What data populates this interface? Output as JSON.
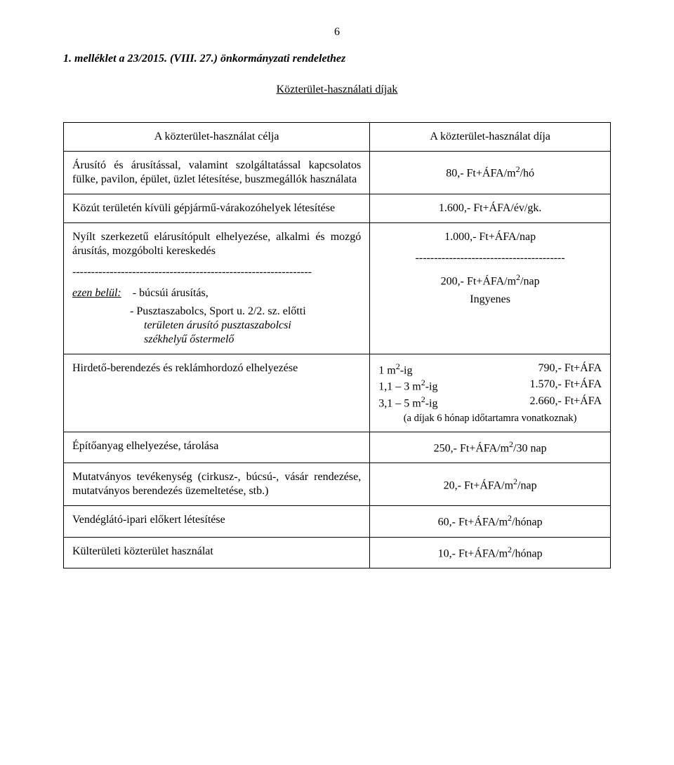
{
  "page_number": "6",
  "reference_line": "1. melléklet a 23/2015. (VIII. 27.) önkormányzati rendelethez",
  "title": "Közterület-használati díjak",
  "columns": {
    "left_header": "A közterület-használat célja",
    "right_header": "A közterület-használat díja"
  },
  "rows": {
    "selling": {
      "left": "Árusító és árusítással, valamint szolgáltatással kapcsolatos fülke, pavilon, épület, üzlet létesítése, buszmegállók használata",
      "right_html": "80,- Ft+ÁFA/m<sup>2</sup>/hó"
    },
    "parking": {
      "left": "Közút területén kívüli gépjármű-várakozóhelyek létesítése",
      "right": "1.600,- Ft+ÁFA/év/gk."
    },
    "booth": {
      "left": "Nyílt szerkezetű elárusítópult elhelyezése, alkalmi és mozgó árusítás, mozgóbolti kereskedés",
      "right": "1.000,- Ft+ÁFA/nap",
      "dash_left": "----------------------------------------------------------------",
      "dash_right": "----------------------------------------",
      "sub_label_prefix": "ezen belül:",
      "sub_label_1": "- búcsúi árusítás,",
      "sub_label_2a": "- Pusztaszabolcs, Sport u. 2/2. sz. előtti",
      "sub_label_2b": "területen árusító pusztaszabolcsi",
      "sub_label_2c": "székhelyű őstermelő",
      "sub_right_1_html": "200,- Ft+ÁFA/m<sup>2</sup>/nap",
      "sub_right_2": "Ingyenes"
    },
    "advert": {
      "left": "Hirdető-berendezés és reklámhordozó elhelyezése",
      "tariff": [
        {
          "label_html": "1 m<sup>2</sup>-ig",
          "value": "790,- Ft+ÁFA"
        },
        {
          "label_html": "1,1 – 3 m<sup>2</sup>-ig",
          "value": "1.570,- Ft+ÁFA"
        },
        {
          "label_html": "3,1 – 5 m<sup>2</sup>-ig",
          "value": "2.660,- Ft+ÁFA"
        }
      ],
      "note": "(a díjak 6 hónap időtartamra vonatkoznak)"
    },
    "build": {
      "left": "Építőanyag elhelyezése, tárolása",
      "right_html": "250,- Ft+ÁFA/m<sup>2</sup>/30 nap"
    },
    "show": {
      "left": "Mutatványos tevékenység (cirkusz-, búcsú-, vásár rendezése, mutatványos berendezés üzemeltetése, stb.)",
      "right_html": "20,- Ft+ÁFA/m<sup>2</sup>/nap"
    },
    "terrace": {
      "left": "Vendéglátó-ipari előkert létesítése",
      "right_html": "60,- Ft+ÁFA/m<sup>2</sup>/hónap"
    },
    "outer": {
      "left": "Külterületi közterület használat",
      "right_html": "10,- Ft+ÁFA/m<sup>2</sup>/hónap"
    }
  }
}
